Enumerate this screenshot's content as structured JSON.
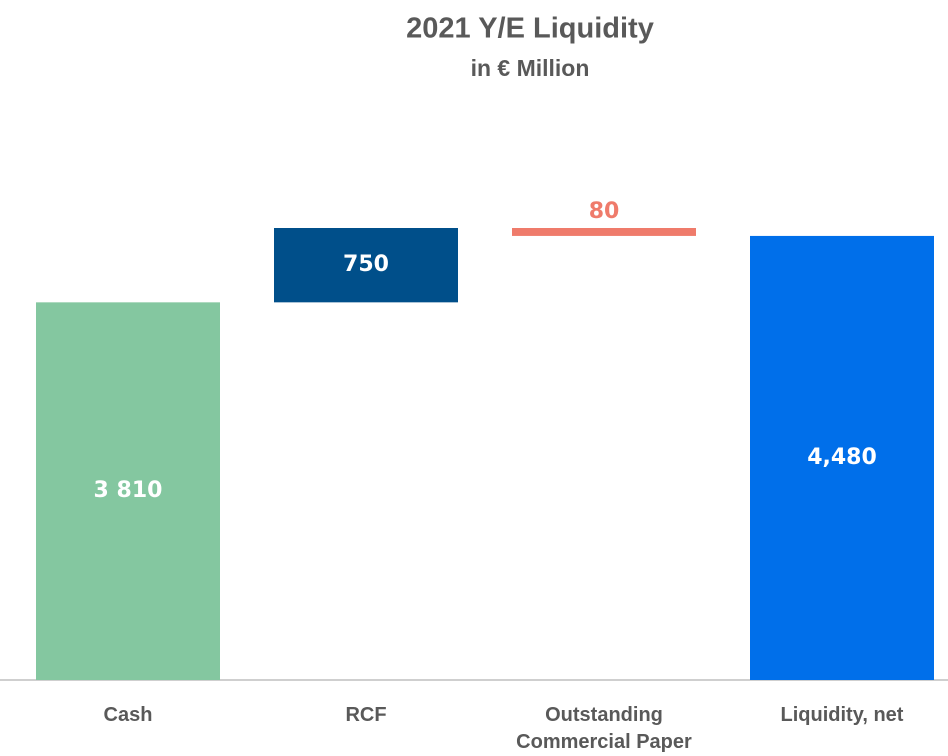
{
  "chart_data": {
    "type": "waterfall",
    "title": "2021 Y/E Liquidity",
    "subtitle": "in € Million",
    "categories": [
      "Cash",
      "RCF",
      "Outstanding Commercial Paper",
      "Liquidity, net"
    ],
    "values": [
      3810,
      750,
      -80,
      4480
    ],
    "value_labels": [
      "3 810",
      "750",
      "80",
      "4,480"
    ],
    "colors": [
      "#84c7a0",
      "#004f8a",
      "#ef7b6b",
      "#006fea"
    ]
  }
}
